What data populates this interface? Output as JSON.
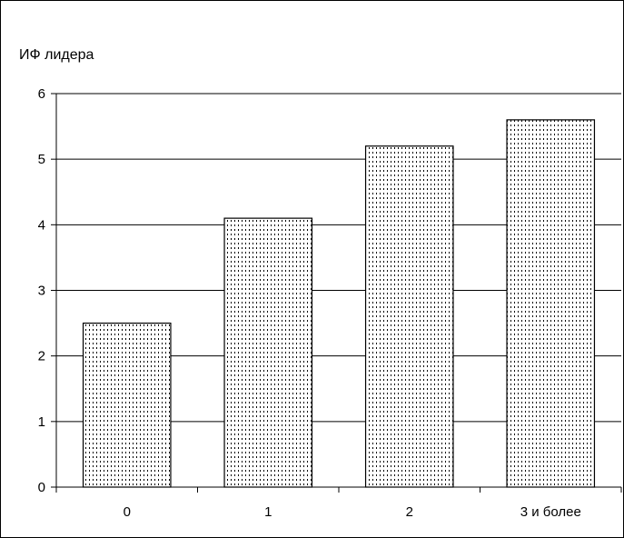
{
  "chart_data": {
    "type": "bar",
    "title": "",
    "xlabel": "",
    "ylabel": "ИФ лидера",
    "categories": [
      "0",
      "1",
      "2",
      "3 и более"
    ],
    "values": [
      2.5,
      4.1,
      5.2,
      5.6
    ],
    "ylim": [
      0,
      6
    ],
    "y_ticks": [
      "0",
      "1",
      "2",
      "3",
      "4",
      "5",
      "6"
    ],
    "grid": true,
    "legend": "none",
    "bar_fill": "dotted-pattern",
    "colors": {
      "bar_stroke": "#000000",
      "bar_pattern": "#000000",
      "background": "#ffffff",
      "gridline": "#000000"
    }
  }
}
